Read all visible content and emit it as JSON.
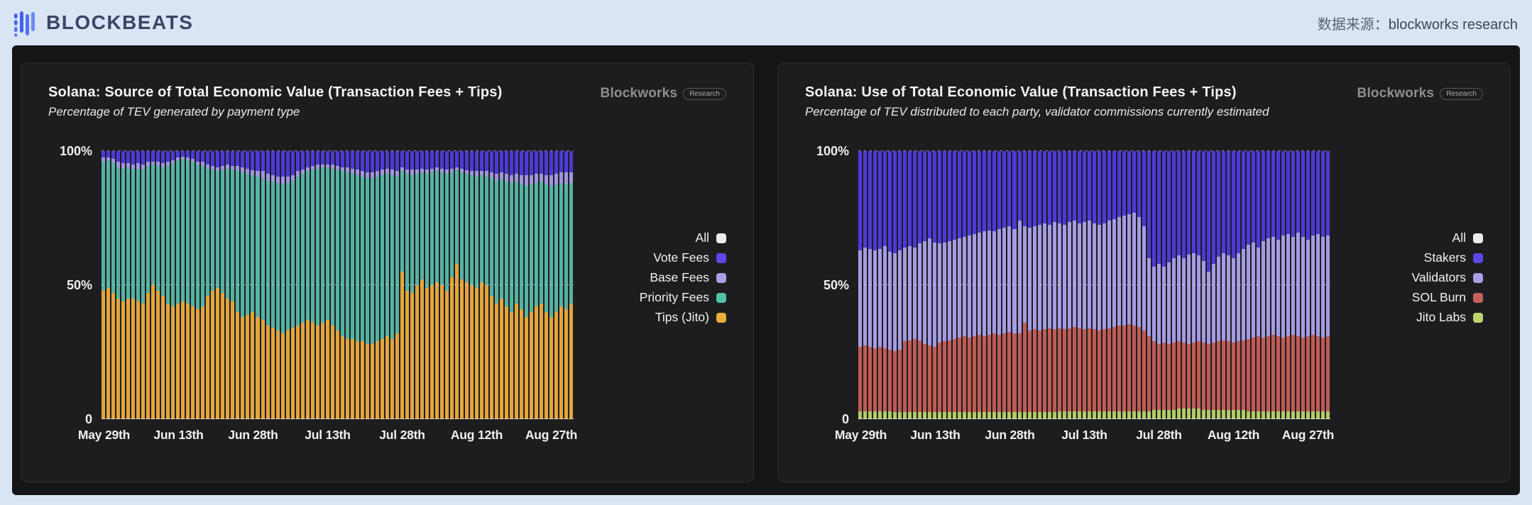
{
  "header": {
    "logo_text": "BLOCKBEATS",
    "source_label": "数据来源：",
    "source_value": "blockworks research"
  },
  "colors": {
    "page_background": "#d9e4f5",
    "panel_background": "#151517",
    "card_background": "#1d1d1f"
  },
  "chart_data": [
    {
      "type": "bar",
      "stacked": true,
      "n_points": 95,
      "title": "Solana: Source of Total Economic Value (Transaction Fees + Tips)",
      "subtitle": "Percentage of TEV generated by payment type",
      "watermark_brand": "Blockworks",
      "watermark_badge": "Research",
      "ylim": [
        0,
        100
      ],
      "grid": "dashed horizontal at 50% and 100%",
      "legend_position": "right",
      "y_ticks": [
        {
          "label": "100%",
          "value": 100
        },
        {
          "label": "50%",
          "value": 50
        },
        {
          "label": "0",
          "value": 0
        }
      ],
      "x_tick_labels": [
        {
          "label": "May 29th",
          "index": 0
        },
        {
          "label": "Jun 13th",
          "index": 15
        },
        {
          "label": "Jun 28th",
          "index": 30
        },
        {
          "label": "Jul 13th",
          "index": 45
        },
        {
          "label": "Jul 28th",
          "index": 60
        },
        {
          "label": "Aug 12th",
          "index": 75
        },
        {
          "label": "Aug 27th",
          "index": 90
        }
      ],
      "legend": [
        {
          "label": "All",
          "color": "#ececec"
        },
        {
          "label": "Vote Fees",
          "color": "#5b48e8"
        },
        {
          "label": "Base Fees",
          "color": "#a89fe8"
        },
        {
          "label": "Priority Fees",
          "color": "#52c2a6"
        },
        {
          "label": "Tips (Jito)",
          "color": "#ecae3c"
        }
      ],
      "series": [
        {
          "name": "Tips (Jito)",
          "color": "#e3a53c",
          "values": [
            48,
            49,
            47,
            45,
            44,
            45,
            45,
            44,
            43,
            47,
            50,
            48,
            46,
            43,
            42,
            43,
            44,
            43,
            42,
            41,
            42,
            46,
            48,
            49,
            47,
            45,
            44,
            40,
            38,
            39,
            40,
            38,
            37,
            35,
            34,
            33,
            32,
            33,
            34,
            35,
            36,
            37,
            36,
            35,
            36,
            37,
            35,
            33,
            31,
            30,
            30,
            29,
            29,
            28,
            28,
            29,
            30,
            31,
            30,
            32,
            55,
            48,
            47,
            50,
            52,
            49,
            50,
            51,
            50,
            48,
            53,
            58,
            52,
            51,
            50,
            49,
            51,
            50,
            46,
            43,
            45,
            42,
            40,
            43,
            41,
            38,
            40,
            42,
            43,
            40,
            38,
            40,
            42,
            41,
            43
          ]
        },
        {
          "name": "Priority Fees",
          "color": "#56b2a2",
          "values": [
            48,
            47.5,
            48.5,
            49,
            49.5,
            49,
            48,
            49.5,
            50,
            47.5,
            45,
            46.5,
            48,
            51.5,
            53.5,
            53.5,
            53,
            53.5,
            54,
            54,
            52.5,
            47.5,
            45,
            43.5,
            46,
            48.5,
            49,
            52.5,
            54,
            52.5,
            51,
            52.5,
            53,
            54,
            54.5,
            55,
            55.5,
            55,
            55,
            55.5,
            55.5,
            55.5,
            57,
            58.5,
            58,
            57,
            58.5,
            60,
            61.5,
            62,
            61.5,
            62,
            61.5,
            62,
            62,
            61.5,
            61,
            60.5,
            61,
            58.5,
            37.5,
            43.5,
            44,
            41.5,
            40,
            42.5,
            42,
            41.5,
            42,
            43.5,
            39,
            35,
            40,
            40.5,
            41,
            41.5,
            40,
            40.5,
            44,
            46,
            44.5,
            46.5,
            48,
            45.5,
            46.5,
            49,
            47.5,
            46,
            45.5,
            47.5,
            49,
            47.5,
            46,
            46.5,
            45
          ]
        },
        {
          "name": "Base Fees",
          "color": "#a096dd",
          "values": [
            1.5,
            1,
            1.5,
            2,
            2,
            1.5,
            2,
            2,
            2,
            1.5,
            1,
            1.5,
            1.5,
            1.5,
            1,
            1,
            1,
            1,
            1,
            1,
            1.5,
            1.5,
            1.5,
            1.5,
            1.5,
            1.5,
            1.5,
            2,
            2,
            2,
            2,
            2,
            2.5,
            2.5,
            2.5,
            2.5,
            3,
            2.5,
            2,
            2,
            1.5,
            1.5,
            1.5,
            1.5,
            1,
            1,
            1.5,
            1.5,
            1.5,
            2,
            2,
            2,
            2,
            2,
            2,
            2,
            2,
            2,
            2,
            2,
            1.5,
            1.5,
            2,
            1.5,
            1.5,
            1.5,
            1.5,
            1.5,
            1.5,
            1.5,
            1.5,
            1,
            1.5,
            1.5,
            1.5,
            2,
            1.5,
            2,
            2,
            2.5,
            2.5,
            3,
            3,
            3,
            3.5,
            4,
            3.5,
            3.5,
            3,
            3.5,
            4,
            4,
            4,
            4.5,
            4
          ]
        },
        {
          "name": "Vote Fees",
          "color": "#4c3ad6",
          "values": [
            2.5,
            2.5,
            3,
            4,
            4.5,
            4.5,
            5,
            4.5,
            5,
            4,
            4,
            4,
            4.5,
            4,
            3.5,
            2.5,
            2,
            2.5,
            3,
            4,
            4,
            5,
            5.5,
            6,
            5.5,
            5,
            5.5,
            5.5,
            6,
            6.5,
            7,
            7.5,
            7.5,
            8.5,
            9,
            9.5,
            9.5,
            9.5,
            9,
            7.5,
            7,
            6,
            5.5,
            5,
            5,
            5,
            5,
            5.5,
            6,
            6,
            6.5,
            7,
            7.5,
            8,
            8,
            7.5,
            7,
            6.5,
            7,
            7.5,
            6,
            7,
            7,
            7,
            6.5,
            7,
            6.5,
            6,
            6.5,
            7,
            6.5,
            6,
            6.5,
            7,
            7.5,
            7.5,
            7.5,
            7.5,
            8,
            8.5,
            8,
            8.5,
            9,
            8.5,
            9,
            9,
            9,
            8.5,
            8.5,
            9,
            9,
            8.5,
            8,
            8,
            8
          ]
        }
      ]
    },
    {
      "type": "bar",
      "stacked": true,
      "n_points": 95,
      "title": "Solana: Use of Total Economic Value (Transaction Fees + Tips)",
      "subtitle": "Percentage of TEV distributed to each party, validator commissions currently estimated",
      "watermark_brand": "Blockworks",
      "watermark_badge": "Research",
      "ylim": [
        0,
        100
      ],
      "grid": "dashed horizontal at 50% and 100%",
      "legend_position": "right",
      "y_ticks": [
        {
          "label": "100%",
          "value": 100
        },
        {
          "label": "50%",
          "value": 50
        },
        {
          "label": "0",
          "value": 0
        }
      ],
      "x_tick_labels": [
        {
          "label": "May 29th",
          "index": 0
        },
        {
          "label": "Jun 13th",
          "index": 15
        },
        {
          "label": "Jun 28th",
          "index": 30
        },
        {
          "label": "Jul 13th",
          "index": 45
        },
        {
          "label": "Jul 28th",
          "index": 60
        },
        {
          "label": "Aug 12th",
          "index": 75
        },
        {
          "label": "Aug 27th",
          "index": 90
        }
      ],
      "legend": [
        {
          "label": "All",
          "color": "#ececec"
        },
        {
          "label": "Stakers",
          "color": "#5b48e8"
        },
        {
          "label": "Validators",
          "color": "#a89fe8"
        },
        {
          "label": "SOL Burn",
          "color": "#c5635b"
        },
        {
          "label": "Jito Labs",
          "color": "#bcd470"
        }
      ],
      "series": [
        {
          "name": "Jito Labs",
          "color": "#b2cb67",
          "values": [
            3,
            3,
            3,
            2.8,
            2.8,
            2.8,
            2.8,
            2.6,
            2.6,
            2.6,
            2.6,
            2.6,
            2.6,
            2.6,
            2.6,
            2.6,
            2.6,
            2.6,
            2.6,
            2.6,
            2.6,
            2.6,
            2.6,
            2.6,
            2.6,
            2.6,
            2.6,
            2.6,
            2.6,
            2.6,
            2.6,
            2.6,
            2.6,
            2.6,
            2.6,
            2.6,
            2.6,
            2.6,
            2.6,
            2.6,
            3,
            3,
            3,
            3,
            3,
            3,
            3,
            3,
            3,
            3,
            3,
            3,
            3,
            3,
            3,
            3,
            3,
            3,
            3,
            3.5,
            3.5,
            3.5,
            3.5,
            3.5,
            4,
            4,
            4,
            4,
            4,
            3.5,
            3.5,
            3.5,
            3.5,
            3.5,
            3.5,
            3.5,
            3.5,
            3.5,
            3,
            3,
            3,
            3,
            3,
            3,
            3,
            3,
            3,
            3,
            3,
            3,
            3,
            3,
            3,
            3,
            3
          ]
        },
        {
          "name": "SOL Burn",
          "color": "#bf5b55",
          "values": [
            24,
            24.5,
            24,
            23.7,
            24.2,
            23.7,
            23.2,
            22.9,
            23.4,
            26.4,
            26.9,
            27.4,
            26.9,
            25.4,
            24.9,
            24.4,
            25.9,
            26.4,
            26.9,
            27.4,
            27.9,
            28.4,
            27.9,
            28.4,
            28.9,
            28.4,
            28.9,
            29.4,
            28.9,
            29.4,
            29.9,
            29.4,
            29.4,
            33.4,
            30.4,
            30.9,
            30.4,
            30.9,
            31.4,
            30.9,
            31,
            30.5,
            31,
            31.5,
            31,
            30.5,
            31,
            30.5,
            30,
            30.5,
            31,
            31.5,
            32,
            32,
            32.5,
            32,
            31.5,
            30,
            28,
            25.5,
            24.5,
            25,
            24.5,
            25,
            25,
            24.5,
            24,
            24.5,
            25,
            25,
            24.5,
            25,
            25.5,
            26,
            25.5,
            25,
            25.5,
            26,
            27,
            27.5,
            28,
            27.5,
            28,
            28.5,
            28,
            27.5,
            28,
            28.5,
            28,
            27.5,
            28,
            28.5,
            28,
            27.5,
            28
          ]
        },
        {
          "name": "Validators",
          "color": "#a49ce2",
          "values": [
            36,
            36.5,
            36.5,
            36.5,
            36.5,
            38,
            36.5,
            36.5,
            37,
            35,
            35,
            34,
            36,
            38.5,
            40,
            39,
            37,
            37,
            37,
            37,
            37,
            37,
            38,
            38,
            38,
            39,
            39,
            38,
            39.5,
            39.5,
            39.5,
            39,
            42,
            36,
            38.5,
            38.5,
            39.5,
            39.5,
            38.5,
            40,
            39,
            39,
            39.5,
            39.5,
            39,
            40,
            40,
            39.5,
            39.5,
            39.5,
            40,
            40,
            40.5,
            41,
            41,
            42,
            41,
            39,
            29,
            28,
            30,
            28.5,
            30.5,
            31.5,
            32,
            31.5,
            33.5,
            33.5,
            32,
            30.5,
            27,
            29.5,
            31.5,
            32.5,
            32,
            31.5,
            33,
            34,
            35,
            35.5,
            33,
            36,
            36.5,
            36.5,
            36,
            38,
            38,
            36.5,
            38.5,
            37.5,
            36,
            37,
            38,
            37.5,
            37.5
          ]
        },
        {
          "name": "Stakers",
          "color": "#4c3ad6",
          "values": [
            37,
            36,
            36.5,
            37,
            36.5,
            35.5,
            37.5,
            38,
            37,
            36,
            35.5,
            36,
            34.5,
            33.5,
            32.5,
            34,
            34.5,
            34,
            33.5,
            33,
            32.5,
            32,
            31.5,
            31,
            30.5,
            30,
            29.5,
            30,
            29,
            28.5,
            28,
            29,
            26,
            28,
            28.5,
            28,
            27.5,
            27,
            27.5,
            26.5,
            27,
            27.5,
            26.5,
            26,
            27,
            26.5,
            26,
            27,
            27.5,
            27,
            26,
            25.5,
            24.5,
            24,
            23.5,
            23,
            24.5,
            28,
            40,
            43,
            42,
            43,
            41.5,
            40,
            39,
            40,
            38.5,
            38,
            39,
            41,
            45,
            42,
            39.5,
            38,
            39,
            40,
            38,
            36.5,
            35,
            34,
            36,
            33.5,
            32.5,
            32,
            33,
            31.5,
            31,
            32,
            30.5,
            32,
            33,
            31.5,
            31,
            32,
            31.5
          ]
        }
      ]
    }
  ]
}
